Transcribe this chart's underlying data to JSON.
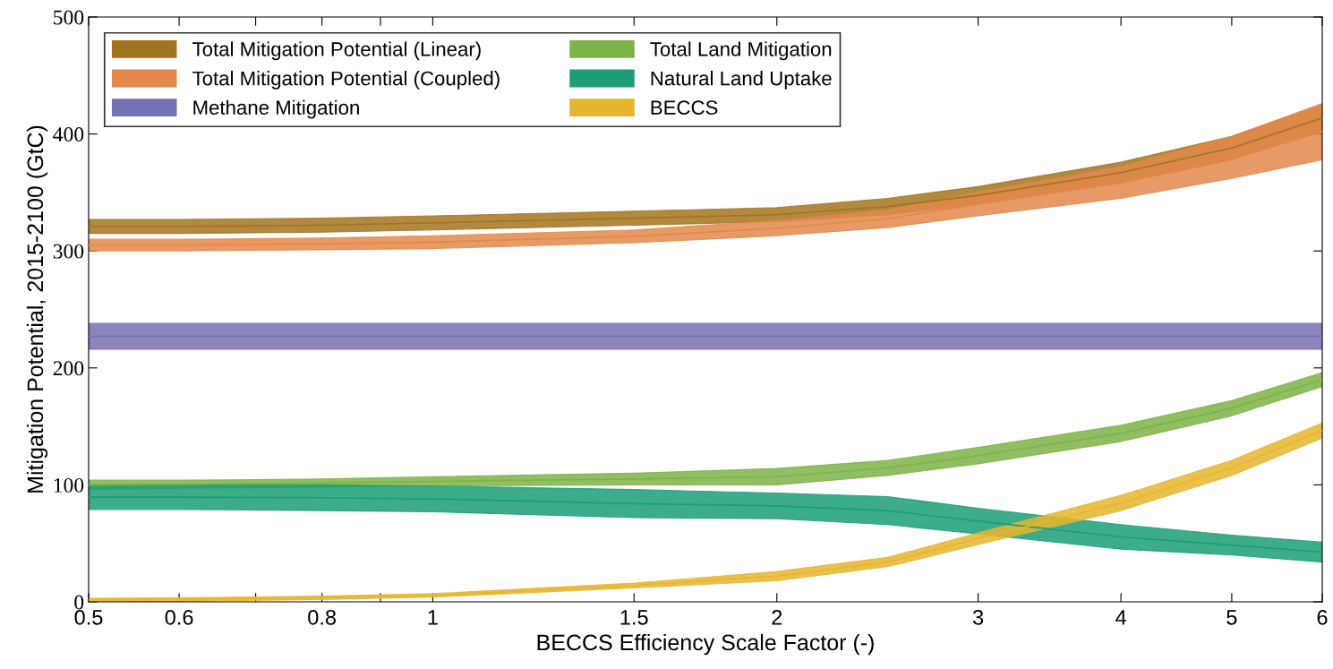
{
  "chart_data": {
    "type": "line",
    "xlabel": "BECCS Efficiency Scale Factor (-)",
    "ylabel": "Mitigation Potential, 2015-2100 (GtC)",
    "x": [
      0.5,
      0.6,
      0.8,
      1,
      1.5,
      2,
      2.5,
      3,
      4,
      5,
      6
    ],
    "series": [
      {
        "name": "Total Mitigation Potential (Linear)",
        "color": "#a37420",
        "lower": [
          315,
          315,
          316,
          318,
          322,
          325,
          331,
          340,
          358,
          378,
          402
        ],
        "upper": [
          327,
          327,
          328,
          330,
          334,
          337,
          345,
          355,
          376,
          398,
          425
        ],
        "values": [
          321,
          321,
          322,
          324,
          328,
          331,
          338,
          347.5,
          367,
          388,
          413.5
        ]
      },
      {
        "name": "Total Mitigation Potential (Coupled)",
        "color": "#e3884a",
        "lower": [
          300,
          300,
          301,
          302,
          307,
          313,
          320,
          330,
          345,
          362,
          378
        ],
        "upper": [
          310,
          310,
          311,
          313,
          318,
          326,
          335,
          350,
          372,
          398,
          426
        ],
        "values": [
          305,
          305,
          306,
          307.5,
          312.5,
          319.5,
          327.5,
          340,
          358.5,
          380,
          402
        ]
      },
      {
        "name": "Methane Mitigation",
        "color": "#7570b3",
        "lower": [
          216,
          216,
          216,
          216,
          216,
          216,
          216,
          216,
          216,
          216,
          216
        ],
        "upper": [
          238,
          238,
          238,
          238,
          238,
          238,
          238,
          238,
          238,
          238,
          238
        ],
        "values": [
          227,
          227,
          227,
          227,
          227,
          227,
          227,
          227,
          227,
          227,
          227
        ]
      },
      {
        "name": "Total Land Mitigation",
        "color": "#7fb348",
        "lower": [
          96,
          97,
          98,
          99,
          100,
          100,
          108,
          118,
          137,
          159,
          184
        ],
        "upper": [
          104,
          104,
          105,
          107,
          110,
          114,
          121,
          132,
          151,
          172,
          196
        ],
        "values": [
          100,
          100.5,
          101.5,
          103,
          105,
          107,
          114.5,
          125,
          144,
          165.5,
          190
        ]
      },
      {
        "name": "Natural Land Uptake",
        "color": "#1b9e77",
        "lower": [
          79,
          79,
          78,
          77,
          72,
          71,
          66,
          58,
          45,
          40,
          34
        ],
        "upper": [
          100,
          100,
          100,
          99,
          96,
          93,
          90,
          80,
          66,
          57,
          51
        ],
        "values": [
          89.5,
          89.5,
          89,
          88,
          84,
          82,
          78,
          69,
          55.5,
          48.5,
          42.5
        ]
      },
      {
        "name": "BECCS",
        "color": "#e6b52e",
        "lower": [
          0,
          0.5,
          2,
          4,
          12,
          18,
          30,
          49,
          78,
          108,
          140
        ],
        "upper": [
          3,
          3.5,
          5,
          7,
          16,
          26,
          38,
          59,
          91,
          121,
          153
        ],
        "values": [
          1.5,
          2,
          3.5,
          5.5,
          14,
          22,
          34,
          54,
          84.5,
          114.5,
          146.5
        ]
      }
    ],
    "log": "x",
    "xlim": [
      0.5,
      6
    ],
    "xticks": [
      0.5,
      0.6,
      {
        "value": 0.7,
        "label": null
      },
      0.8,
      {
        "value": 0.9,
        "label": null
      },
      1,
      1.5,
      2,
      3,
      4,
      5,
      6
    ],
    "ylim": [
      0,
      500
    ],
    "yticks": [
      0,
      100,
      200,
      300,
      400,
      500
    ],
    "grid": false,
    "legend": "top left"
  }
}
